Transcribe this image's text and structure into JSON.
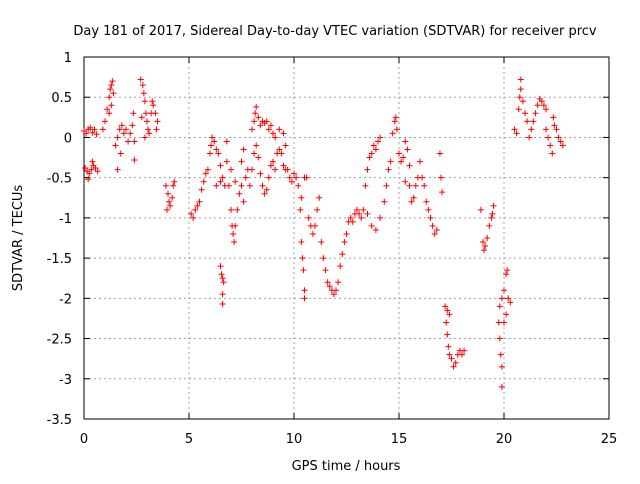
{
  "chart_data": {
    "type": "scatter",
    "title": "Day 181 of 2017, Sidereal Day-to-day VTEC variation (SDTVAR) for receiver prcv",
    "xlabel": "GPS time / hours",
    "ylabel": "SDTVAR / TECUs",
    "xlim": [
      0,
      25
    ],
    "ylim": [
      -3.5,
      1
    ],
    "xticks": [
      0,
      5,
      10,
      15,
      20,
      25
    ],
    "yticks": [
      1,
      0.5,
      0,
      -0.5,
      -1,
      -1.5,
      -2,
      -2.5,
      -3,
      -3.5
    ],
    "xtick_labels": [
      "0",
      "5",
      "10",
      "15",
      "20",
      "25"
    ],
    "ytick_labels": [
      "1",
      "0.5",
      "0",
      "-0.5",
      "-1",
      "-1.5",
      "-2",
      "-2.5",
      "-3",
      "-3.5"
    ],
    "grid": true,
    "marker": "plus",
    "color": "#ff0000",
    "series": [
      {
        "name": "SDTVAR",
        "points": [
          [
            0.0,
            0.08
          ],
          [
            0.1,
            0.05
          ],
          [
            0.2,
            0.1
          ],
          [
            0.3,
            0.12
          ],
          [
            0.4,
            0.06
          ],
          [
            0.5,
            0.1
          ],
          [
            0.6,
            0.04
          ],
          [
            0.05,
            -0.38
          ],
          [
            0.15,
            -0.42
          ],
          [
            0.25,
            -0.45
          ],
          [
            0.35,
            -0.4
          ],
          [
            0.45,
            -0.35
          ],
          [
            0.55,
            -0.38
          ],
          [
            0.65,
            -0.42
          ],
          [
            0.2,
            -0.52
          ],
          [
            0.4,
            -0.3
          ],
          [
            0.9,
            0.1
          ],
          [
            1.0,
            0.2
          ],
          [
            1.1,
            0.35
          ],
          [
            1.2,
            0.5
          ],
          [
            1.25,
            0.6
          ],
          [
            1.3,
            0.65
          ],
          [
            1.35,
            0.7
          ],
          [
            1.4,
            0.55
          ],
          [
            1.3,
            0.4
          ],
          [
            1.2,
            0.3
          ],
          [
            1.5,
            -0.1
          ],
          [
            1.6,
            -0.4
          ],
          [
            1.6,
            0.0
          ],
          [
            1.7,
            0.1
          ],
          [
            1.8,
            0.15
          ],
          [
            1.9,
            0.05
          ],
          [
            2.0,
            0.1
          ],
          [
            2.1,
            -0.05
          ],
          [
            1.75,
            -0.2
          ],
          [
            2.2,
            0.05
          ],
          [
            2.3,
            0.15
          ],
          [
            2.35,
            0.3
          ],
          [
            2.4,
            -0.05
          ],
          [
            2.4,
            -0.28
          ],
          [
            2.7,
            0.72
          ],
          [
            2.8,
            0.65
          ],
          [
            2.85,
            0.55
          ],
          [
            2.9,
            0.45
          ],
          [
            2.95,
            0.3
          ],
          [
            3.0,
            0.2
          ],
          [
            3.05,
            0.1
          ],
          [
            3.1,
            0.05
          ],
          [
            2.75,
            0.25
          ],
          [
            2.9,
            0.0
          ],
          [
            3.2,
            0.3
          ],
          [
            3.25,
            0.45
          ],
          [
            3.3,
            0.4
          ],
          [
            3.4,
            0.3
          ],
          [
            3.5,
            0.2
          ],
          [
            3.45,
            0.1
          ],
          [
            3.9,
            -0.6
          ],
          [
            4.0,
            -0.7
          ],
          [
            4.05,
            -0.8
          ],
          [
            4.1,
            -0.85
          ],
          [
            4.2,
            -0.75
          ],
          [
            4.25,
            -0.6
          ],
          [
            4.3,
            -0.55
          ],
          [
            3.95,
            -0.9
          ],
          [
            5.1,
            -0.95
          ],
          [
            5.2,
            -1.0
          ],
          [
            5.3,
            -0.9
          ],
          [
            5.4,
            -0.85
          ],
          [
            5.5,
            -0.8
          ],
          [
            5.6,
            -0.65
          ],
          [
            5.7,
            -0.55
          ],
          [
            5.8,
            -0.45
          ],
          [
            5.9,
            -0.4
          ],
          [
            6.0,
            -0.2
          ],
          [
            6.05,
            -0.1
          ],
          [
            6.1,
            0.0
          ],
          [
            6.2,
            -0.05
          ],
          [
            6.3,
            -0.15
          ],
          [
            6.4,
            -0.2
          ],
          [
            6.5,
            -0.35
          ],
          [
            6.6,
            -0.5
          ],
          [
            6.7,
            -0.6
          ],
          [
            6.3,
            -0.6
          ],
          [
            6.5,
            -0.55
          ],
          [
            6.5,
            -1.6
          ],
          [
            6.55,
            -1.7
          ],
          [
            6.6,
            -1.75
          ],
          [
            6.65,
            -1.8
          ],
          [
            6.6,
            -1.95
          ],
          [
            6.6,
            -2.07
          ],
          [
            6.8,
            -0.3
          ],
          [
            6.9,
            -0.6
          ],
          [
            7.0,
            -0.9
          ],
          [
            7.05,
            -1.1
          ],
          [
            7.1,
            -1.2
          ],
          [
            7.15,
            -1.3
          ],
          [
            7.2,
            -1.1
          ],
          [
            7.3,
            -0.9
          ],
          [
            7.4,
            -0.7
          ],
          [
            6.8,
            -0.05
          ],
          [
            7.0,
            -0.4
          ],
          [
            7.2,
            -0.55
          ],
          [
            7.5,
            -0.3
          ],
          [
            7.6,
            -0.15
          ],
          [
            7.5,
            -0.6
          ],
          [
            7.6,
            -0.8
          ],
          [
            7.7,
            -0.5
          ],
          [
            7.8,
            -0.4
          ],
          [
            8.0,
            0.1
          ],
          [
            8.1,
            0.2
          ],
          [
            8.15,
            0.3
          ],
          [
            8.2,
            0.38
          ],
          [
            8.3,
            0.25
          ],
          [
            8.4,
            0.15
          ],
          [
            8.5,
            0.2
          ],
          [
            8.6,
            0.18
          ],
          [
            8.7,
            0.2
          ],
          [
            8.8,
            0.1
          ],
          [
            8.9,
            0.15
          ],
          [
            9.0,
            0.05
          ],
          [
            7.9,
            -0.6
          ],
          [
            8.0,
            -0.4
          ],
          [
            8.1,
            -0.2
          ],
          [
            8.2,
            -0.1
          ],
          [
            8.3,
            -0.25
          ],
          [
            8.4,
            -0.45
          ],
          [
            8.5,
            -0.6
          ],
          [
            8.6,
            -0.7
          ],
          [
            8.7,
            -0.65
          ],
          [
            8.8,
            -0.5
          ],
          [
            8.9,
            -0.35
          ],
          [
            9.0,
            -0.3
          ],
          [
            9.1,
            -0.4
          ],
          [
            9.2,
            -0.2
          ],
          [
            9.3,
            -0.15
          ],
          [
            9.4,
            -0.2
          ],
          [
            9.5,
            -0.35
          ],
          [
            9.6,
            -0.4
          ],
          [
            9.1,
            0.0
          ],
          [
            9.3,
            0.1
          ],
          [
            9.5,
            0.05
          ],
          [
            9.6,
            -0.1
          ],
          [
            9.7,
            -0.4
          ],
          [
            9.8,
            -0.5
          ],
          [
            9.9,
            -0.55
          ],
          [
            10.0,
            -0.45
          ],
          [
            10.1,
            -0.5
          ],
          [
            10.2,
            -0.6
          ],
          [
            10.3,
            -0.9
          ],
          [
            10.35,
            -1.3
          ],
          [
            10.4,
            -1.5
          ],
          [
            10.45,
            -1.65
          ],
          [
            10.5,
            -1.9
          ],
          [
            10.5,
            -2.0
          ],
          [
            10.35,
            -0.75
          ],
          [
            10.5,
            -0.5
          ],
          [
            10.6,
            -0.5
          ],
          [
            10.7,
            -1.0
          ],
          [
            10.8,
            -1.1
          ],
          [
            10.9,
            -1.2
          ],
          [
            11.0,
            -1.1
          ],
          [
            11.1,
            -0.9
          ],
          [
            11.2,
            -0.75
          ],
          [
            11.3,
            -1.3
          ],
          [
            11.4,
            -1.5
          ],
          [
            11.5,
            -1.65
          ],
          [
            11.6,
            -1.8
          ],
          [
            11.7,
            -1.85
          ],
          [
            11.8,
            -1.9
          ],
          [
            11.9,
            -1.95
          ],
          [
            12.0,
            -1.9
          ],
          [
            12.1,
            -1.8
          ],
          [
            12.2,
            -1.6
          ],
          [
            12.3,
            -1.45
          ],
          [
            12.4,
            -1.3
          ],
          [
            12.5,
            -1.2
          ],
          [
            12.6,
            -1.05
          ],
          [
            12.7,
            -1.0
          ],
          [
            12.8,
            -1.05
          ],
          [
            12.9,
            -0.95
          ],
          [
            13.0,
            -0.9
          ],
          [
            13.1,
            -0.95
          ],
          [
            13.2,
            -1.0
          ],
          [
            13.3,
            -0.9
          ],
          [
            13.4,
            -0.6
          ],
          [
            13.5,
            -0.4
          ],
          [
            13.6,
            -0.25
          ],
          [
            13.7,
            -0.2
          ],
          [
            13.8,
            -0.1
          ],
          [
            13.9,
            -0.15
          ],
          [
            14.0,
            -0.05
          ],
          [
            14.1,
            0.0
          ],
          [
            13.5,
            -0.95
          ],
          [
            13.7,
            -1.1
          ],
          [
            13.9,
            -1.15
          ],
          [
            14.1,
            -1.0
          ],
          [
            14.3,
            -0.8
          ],
          [
            14.4,
            -0.6
          ],
          [
            14.5,
            -0.4
          ],
          [
            14.6,
            -0.3
          ],
          [
            14.7,
            0.05
          ],
          [
            14.8,
            0.2
          ],
          [
            14.85,
            0.25
          ],
          [
            14.9,
            0.1
          ],
          [
            15.0,
            -0.2
          ],
          [
            15.1,
            -0.3
          ],
          [
            15.2,
            -0.25
          ],
          [
            15.3,
            -0.05
          ],
          [
            15.4,
            -0.15
          ],
          [
            15.5,
            -0.35
          ],
          [
            15.3,
            -0.55
          ],
          [
            15.5,
            -0.6
          ],
          [
            15.6,
            -0.8
          ],
          [
            15.7,
            -0.75
          ],
          [
            15.8,
            -0.6
          ],
          [
            15.9,
            -0.5
          ],
          [
            16.0,
            -0.3
          ],
          [
            16.1,
            -0.5
          ],
          [
            16.2,
            -0.6
          ],
          [
            16.3,
            -0.8
          ],
          [
            16.4,
            -0.9
          ],
          [
            16.5,
            -1.0
          ],
          [
            16.6,
            -1.1
          ],
          [
            16.7,
            -1.2
          ],
          [
            16.8,
            -1.15
          ],
          [
            16.95,
            -0.2
          ],
          [
            17.0,
            -0.5
          ],
          [
            17.05,
            -0.68
          ],
          [
            17.2,
            -2.1
          ],
          [
            17.25,
            -2.3
          ],
          [
            17.3,
            -2.45
          ],
          [
            17.35,
            -2.6
          ],
          [
            17.4,
            -2.7
          ],
          [
            17.5,
            -2.75
          ],
          [
            17.6,
            -2.85
          ],
          [
            17.7,
            -2.8
          ],
          [
            17.8,
            -2.7
          ],
          [
            17.9,
            -2.65
          ],
          [
            18.0,
            -2.7
          ],
          [
            18.1,
            -2.65
          ],
          [
            17.4,
            -2.2
          ],
          [
            17.3,
            -2.15
          ],
          [
            18.9,
            -0.9
          ],
          [
            19.0,
            -1.3
          ],
          [
            19.05,
            -1.4
          ],
          [
            19.1,
            -1.35
          ],
          [
            19.2,
            -1.25
          ],
          [
            19.3,
            -1.1
          ],
          [
            19.4,
            -1.0
          ],
          [
            19.5,
            -0.85
          ],
          [
            19.45,
            -0.95
          ],
          [
            19.8,
            -2.5
          ],
          [
            19.85,
            -2.7
          ],
          [
            19.9,
            -2.85
          ],
          [
            19.9,
            -3.1
          ],
          [
            19.75,
            -2.3
          ],
          [
            19.8,
            -2.1
          ],
          [
            19.9,
            -2.0
          ],
          [
            20.0,
            -1.9
          ],
          [
            20.1,
            -1.7
          ],
          [
            20.15,
            -1.65
          ],
          [
            20.2,
            -2.0
          ],
          [
            20.3,
            -2.05
          ],
          [
            20.1,
            -2.2
          ],
          [
            20.0,
            -2.3
          ],
          [
            20.5,
            0.1
          ],
          [
            20.6,
            0.05
          ],
          [
            20.7,
            0.35
          ],
          [
            20.75,
            0.5
          ],
          [
            20.8,
            0.6
          ],
          [
            20.8,
            0.72
          ],
          [
            20.9,
            0.45
          ],
          [
            21.0,
            0.3
          ],
          [
            21.1,
            0.2
          ],
          [
            21.2,
            0.0
          ],
          [
            21.3,
            0.1
          ],
          [
            21.4,
            0.2
          ],
          [
            21.5,
            0.3
          ],
          [
            21.6,
            0.4
          ],
          [
            21.7,
            0.48
          ],
          [
            21.8,
            0.45
          ],
          [
            21.9,
            0.4
          ],
          [
            22.0,
            0.35
          ],
          [
            22.0,
            0.1
          ],
          [
            22.1,
            0.0
          ],
          [
            22.2,
            -0.1
          ],
          [
            22.3,
            -0.2
          ],
          [
            22.35,
            0.25
          ],
          [
            22.4,
            0.15
          ],
          [
            22.5,
            0.1
          ],
          [
            22.6,
            0.0
          ],
          [
            22.7,
            -0.05
          ],
          [
            22.8,
            -0.1
          ]
        ]
      }
    ]
  }
}
